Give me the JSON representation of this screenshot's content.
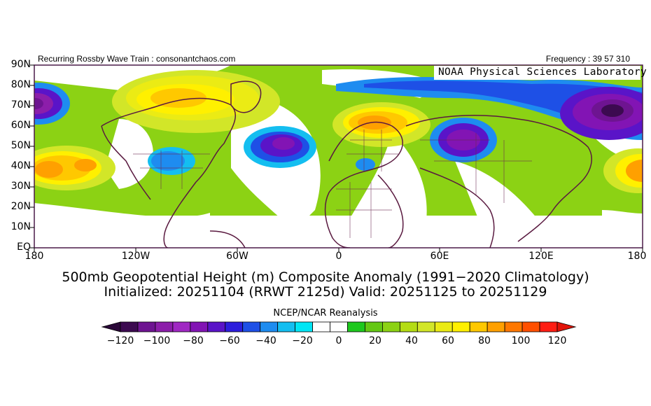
{
  "header": {
    "left_text": "Recurring Rossby Wave Train : consonantchaos.com",
    "right_text": "Frequency : 39 57 310"
  },
  "map": {
    "lab_label": "NOAA Physical Sciences Laboratory",
    "lat_labels": [
      "90N",
      "80N",
      "70N",
      "60N",
      "50N",
      "40N",
      "30N",
      "20N",
      "10N",
      "EQ"
    ],
    "lon_labels": [
      "180",
      "120W",
      "60W",
      "0",
      "60E",
      "120E",
      "180"
    ],
    "anomaly_centers": [
      {
        "region": "North Pacific",
        "sign": "positive"
      },
      {
        "region": "Bering Sea / Alaska",
        "sign": "negative"
      },
      {
        "region": "Central United States",
        "sign": "negative"
      },
      {
        "region": "Greenland / Canadian Arctic",
        "sign": "positive"
      },
      {
        "region": "North Atlantic",
        "sign": "negative"
      },
      {
        "region": "Scandinavia",
        "sign": "positive"
      },
      {
        "region": "Balkans",
        "sign": "negative"
      },
      {
        "region": "Western Siberia",
        "sign": "negative"
      },
      {
        "region": "Eastern Siberia",
        "sign": "negative"
      }
    ]
  },
  "titles": {
    "line1": "500mb Geopotential Height (m) Composite Anomaly (1991−2020 Climatology)",
    "line2": "Initialized: 20251104 (RRWT 2125d) Valid: 20251125 to 20251129"
  },
  "colorbar": {
    "title": "NCEP/NCAR Reanalysis",
    "tick_labels": [
      "−120",
      "−100",
      "−80",
      "−60",
      "−40",
      "−20",
      "0",
      "20",
      "40",
      "60",
      "80",
      "100",
      "120"
    ],
    "colors": [
      "#3c0a50",
      "#6e1491",
      "#8c1eaa",
      "#a028c3",
      "#8214b4",
      "#5a14c8",
      "#2d1edc",
      "#1e50e6",
      "#1e8cf0",
      "#14bef0",
      "#00e6f5",
      "#ffffff",
      "#ffffff",
      "#1ec81e",
      "#64c814",
      "#8cd214",
      "#b4dc14",
      "#d2e628",
      "#ebeb14",
      "#fff000",
      "#ffc800",
      "#ffa000",
      "#ff7800",
      "#ff5000",
      "#ff1e14"
    ],
    "left_arrow_color": "#2a0838",
    "right_arrow_color": "#e1140a"
  }
}
